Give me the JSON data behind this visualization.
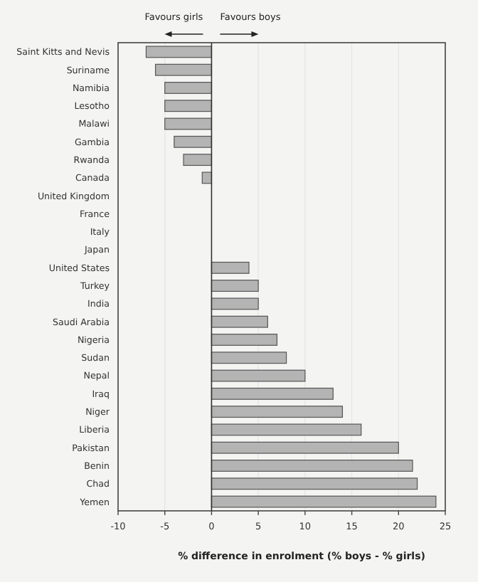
{
  "chart_data": {
    "type": "bar",
    "orientation": "horizontal",
    "xlabel": "% difference in enrolment (% boys - % girls)",
    "categories": [
      "Saint Kitts and Nevis",
      "Suriname",
      "Namibia",
      "Lesotho",
      "Malawi",
      "Gambia",
      "Rwanda",
      "Canada",
      "United Kingdom",
      "France",
      "Italy",
      "Japan",
      "United States",
      "Turkey",
      "India",
      "Saudi Arabia",
      "Nigeria",
      "Sudan",
      "Nepal",
      "Iraq",
      "Niger",
      "Liberia",
      "Pakistan",
      "Benin",
      "Chad",
      "Yemen"
    ],
    "values": [
      -7,
      -6,
      -5,
      -5,
      -5,
      -4,
      -3,
      -1,
      0,
      0,
      0,
      0,
      4,
      5,
      5,
      6,
      7,
      8,
      10,
      13,
      14,
      16,
      20,
      21.5,
      22,
      24
    ],
    "color": "#b4b4b4",
    "xlim": [
      -10,
      25
    ],
    "xticks": [
      -10,
      -5,
      0,
      5,
      10,
      15,
      20,
      25
    ],
    "annotations": [
      "Favours girls",
      "Favours boys"
    ],
    "grid": "x"
  }
}
